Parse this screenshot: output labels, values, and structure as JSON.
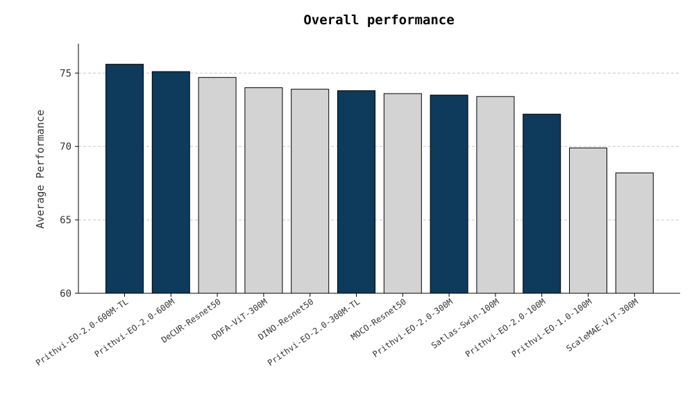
{
  "colors": {
    "highlight": "#0e3a5c",
    "other": "#d3d3d3",
    "grid": "#c8c8c8"
  },
  "chart_data": {
    "type": "bar",
    "title": "Overall performance",
    "xlabel": "",
    "ylabel": "Average Performance",
    "ylim": [
      60,
      77
    ],
    "yticks": [
      60,
      65,
      70,
      75
    ],
    "grid": "y-dashed",
    "categories": [
      "Prithvi-EO-2.0-600M-TL",
      "Prithvi-EO-2.0-600M",
      "DeCUR-Resnet50",
      "DOFA-ViT-300M",
      "DINO-Resnet50",
      "Prithvi-EO-2.0-300M-TL",
      "MOCO-Resnet50",
      "Prithvi-EO-2.0-300M",
      "Satlas-Swin-100M",
      "Prithvi-EO-2.0-100M",
      "Prithvi-EO-1.0-100M",
      "ScaleMAE-ViT-300M"
    ],
    "values": [
      75.6,
      75.1,
      74.7,
      74.0,
      73.9,
      73.8,
      73.6,
      73.5,
      73.4,
      72.2,
      69.9,
      68.2
    ],
    "highlighted": [
      true,
      true,
      false,
      false,
      false,
      true,
      false,
      true,
      false,
      true,
      false,
      false
    ]
  }
}
